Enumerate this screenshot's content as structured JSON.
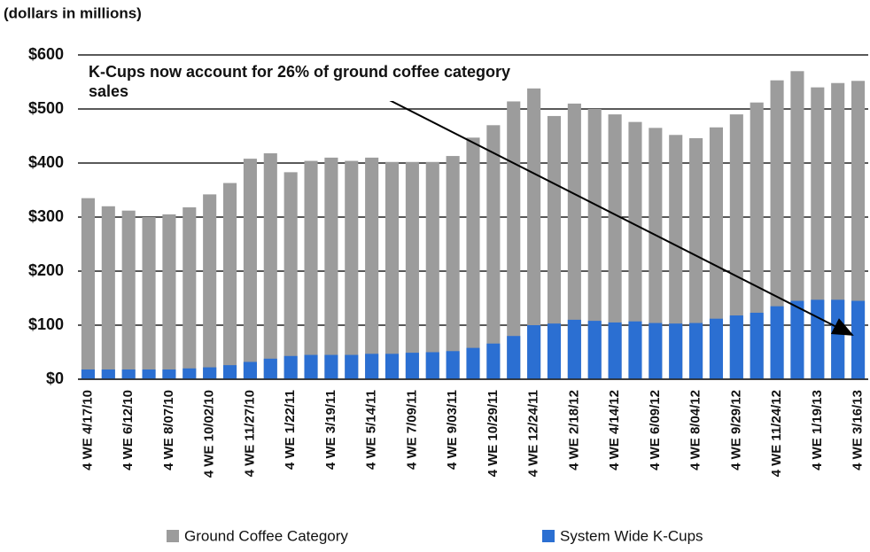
{
  "chart_data": {
    "type": "bar",
    "subtitle": "(dollars in millions)",
    "annotation": "K-Cups now account for 26% of ground coffee category sales",
    "categories": [
      "4 WE 4/17/10",
      null,
      "4 WE 6/12/10",
      null,
      "4 WE 8/07/10",
      null,
      "4 WE 10/02/10",
      null,
      "4 WE 11/27/10",
      null,
      "4 WE 1/22/11",
      null,
      "4 WE 3/19/11",
      null,
      "4 WE 5/14/11",
      null,
      "4 WE 7/09/11",
      null,
      "4 WE 9/03/11",
      null,
      "4 WE 10/29/11",
      null,
      "4 WE 12/24/11",
      null,
      "4 WE 2/18/12",
      null,
      "4 WE 4/14/12",
      null,
      "4 WE 6/09/12",
      null,
      "4 WE 8/04/12",
      null,
      "4 WE 9/29/12",
      null,
      "4 WE 11/24/12",
      null,
      "4 WE 1/19/13",
      null,
      "4 WE 3/16/13"
    ],
    "series": [
      {
        "name": "Ground Coffee Category",
        "color": "#9c9c9c",
        "values": [
          335,
          320,
          312,
          300,
          305,
          318,
          342,
          363,
          408,
          418,
          383,
          404,
          410,
          404,
          410,
          402,
          402,
          402,
          413,
          447,
          470,
          514,
          538,
          487,
          510,
          500,
          490,
          476,
          465,
          452,
          446,
          466,
          490,
          512,
          553,
          570,
          540,
          548,
          552
        ]
      },
      {
        "name": "System Wide K-Cups",
        "color": "#2b6fd2",
        "values": [
          18,
          18,
          18,
          18,
          18,
          20,
          22,
          26,
          32,
          38,
          43,
          45,
          45,
          45,
          47,
          47,
          49,
          50,
          52,
          58,
          66,
          80,
          100,
          103,
          110,
          108,
          105,
          107,
          104,
          103,
          104,
          112,
          118,
          123,
          135,
          145,
          147,
          147,
          145
        ]
      }
    ],
    "ylim": [
      0,
      600
    ],
    "yticks": [
      {
        "value": 0,
        "label": "$0"
      },
      {
        "value": 100,
        "label": "$100"
      },
      {
        "value": 200,
        "label": "$200"
      },
      {
        "value": 300,
        "label": "$300"
      },
      {
        "value": 400,
        "label": "$400"
      },
      {
        "value": 500,
        "label": "$500"
      },
      {
        "value": 600,
        "label": "$600"
      }
    ],
    "grid": true
  }
}
